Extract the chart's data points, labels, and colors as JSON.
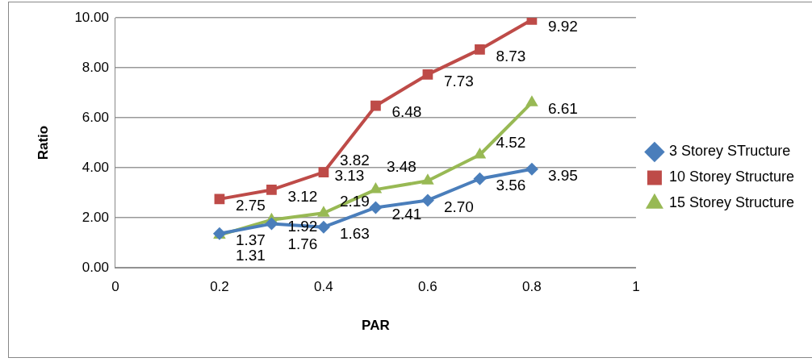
{
  "chart_data": {
    "type": "line",
    "xlabel": "PAR",
    "ylabel": "Ratio",
    "x": [
      0.2,
      0.3,
      0.4,
      0.5,
      0.6,
      0.7,
      0.8
    ],
    "series": [
      {
        "name": "3 Storey STructure",
        "color": "#4a7ebb",
        "marker": "diamond",
        "values": [
          1.37,
          1.76,
          1.63,
          2.41,
          2.7,
          3.56,
          3.95
        ],
        "value_labels": [
          "1.37",
          "1.76",
          "1.63",
          "2.41",
          "2.70",
          "3.56",
          "3.95"
        ]
      },
      {
        "name": "10 Storey Structure",
        "color": "#be4b48",
        "marker": "square",
        "values": [
          2.75,
          3.12,
          3.82,
          6.48,
          7.73,
          8.73,
          9.92
        ]
      },
      {
        "name": "15 Storey Structure",
        "color": "#98b954",
        "marker": "triangle",
        "values": [
          1.31,
          1.92,
          2.19,
          3.13,
          3.48,
          4.52,
          6.61
        ]
      }
    ],
    "xlim": [
      0,
      1
    ],
    "xticks": [
      0,
      0.2,
      0.4,
      0.6,
      0.8,
      1
    ],
    "ylim": [
      0,
      10
    ],
    "yticks": [
      {
        "value": 0,
        "label": "0.00"
      },
      {
        "value": 2,
        "label": "2.00"
      },
      {
        "value": 4,
        "label": "4.00"
      },
      {
        "value": 6,
        "label": "6.00"
      },
      {
        "value": 8,
        "label": "8.00"
      },
      {
        "value": 10,
        "label": "10.00"
      }
    ],
    "grid": "y",
    "legend": "right",
    "data_labels": true
  }
}
